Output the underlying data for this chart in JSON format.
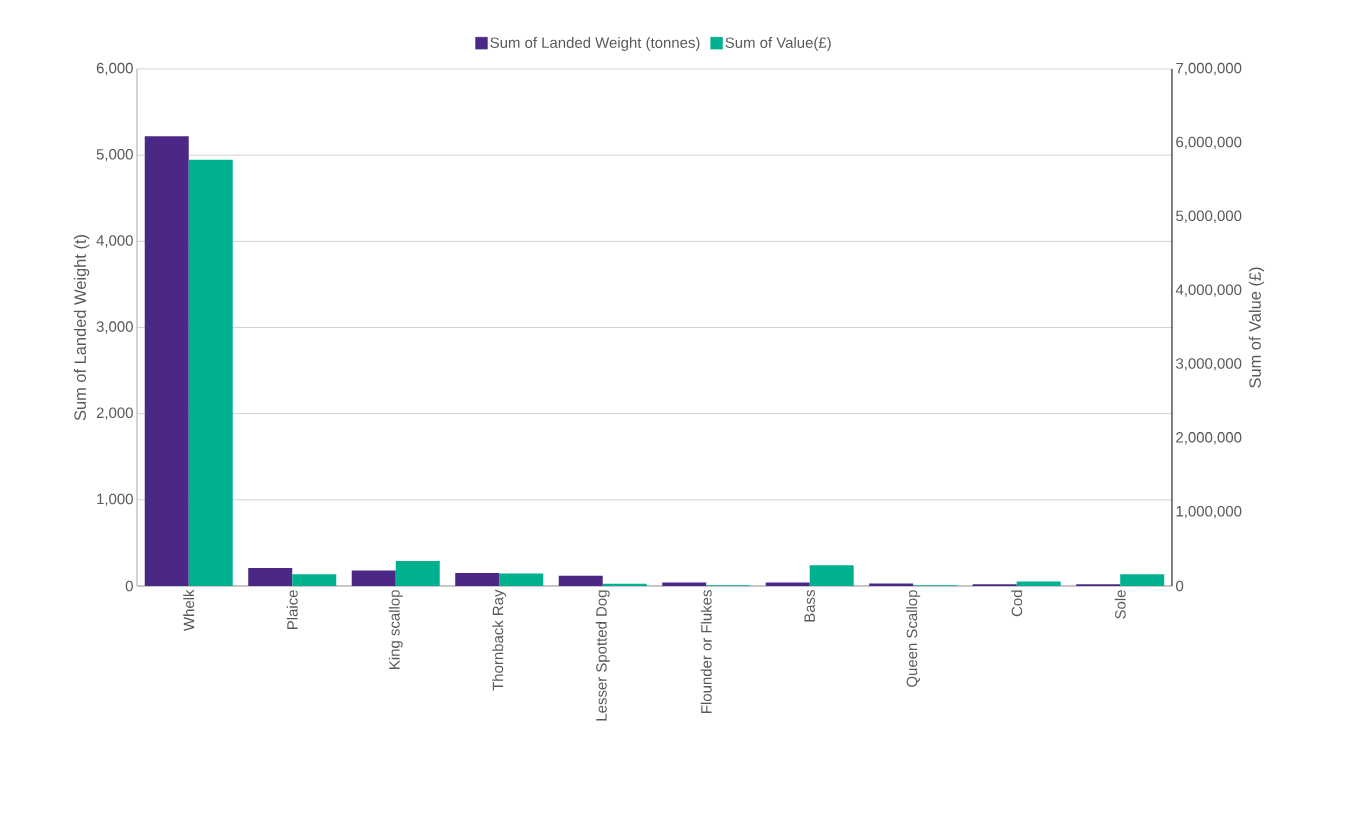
{
  "chart_data": {
    "type": "bar",
    "categories": [
      "Whelk",
      "Plaice",
      "King scallop",
      "Thornback Ray",
      "Lesser Spotted Dog",
      "Flounder or Flukes",
      "Bass",
      "Queen Scallop",
      "Cod",
      "Sole"
    ],
    "series": [
      {
        "name": "Sum of Landed Weight (tonnes)",
        "color": "#4b2885",
        "values": [
          5220,
          210,
          180,
          150,
          120,
          40,
          40,
          30,
          20,
          20
        ]
      },
      {
        "name": "Sum of Value(£)",
        "color": "#00b08f",
        "axis": "y2",
        "values": [
          5770000,
          160000,
          340000,
          170000,
          30000,
          10000,
          280000,
          10000,
          60000,
          160000
        ]
      }
    ],
    "ylabel": "Sum of Landed Weight (t)",
    "y2label": "Sum of Value (£)",
    "ylim": [
      0,
      6000
    ],
    "yticks": [
      {
        "value": 0,
        "label": "0"
      },
      {
        "value": 1000,
        "label": "1,000"
      },
      {
        "value": 2000,
        "label": "2,000"
      },
      {
        "value": 3000,
        "label": "3,000"
      },
      {
        "value": 4000,
        "label": "4,000"
      },
      {
        "value": 5000,
        "label": "5,000"
      },
      {
        "value": 6000,
        "label": "6,000"
      }
    ],
    "y2lim": [
      0,
      7000000
    ],
    "y2ticks": [
      {
        "value": 0,
        "label": "0"
      },
      {
        "value": 1000000,
        "label": "1,000,000"
      },
      {
        "value": 2000000,
        "label": "2,000,000"
      },
      {
        "value": 3000000,
        "label": "3,000,000"
      },
      {
        "value": 4000000,
        "label": "4,000,000"
      },
      {
        "value": 5000000,
        "label": "5,000,000"
      },
      {
        "value": 6000000,
        "label": "6,000,000"
      },
      {
        "value": 7000000,
        "label": "7,000,000"
      }
    ],
    "grid": "y",
    "legend": "top"
  }
}
